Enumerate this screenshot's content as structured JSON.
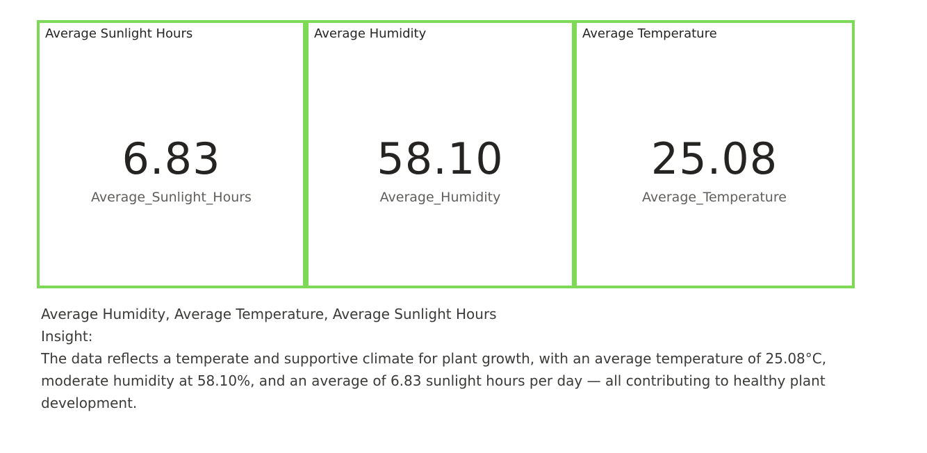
{
  "cards": [
    {
      "title": "Average Sunlight Hours",
      "value": "6.83",
      "caption": "Average_Sunlight_Hours"
    },
    {
      "title": "Average Humidity",
      "value": "58.10",
      "caption": "Average_Humidity"
    },
    {
      "title": "Average Temperature",
      "value": "25.08",
      "caption": "Average_Temperature"
    }
  ],
  "insight": {
    "heading": "Average Humidity, Average Temperature, Average Sunlight Hours",
    "label": "Insight:",
    "body": "The data reflects a temperate and supportive climate for plant growth, with an average temperature of 25.08°C, moderate humidity at 58.10%, and an average of 6.83 sunlight hours per day — all contributing to healthy plant development."
  },
  "colors": {
    "card_border": "#7ed957",
    "value_text": "#252423",
    "caption_text": "#605e5c",
    "body_text": "#3b3a39"
  }
}
